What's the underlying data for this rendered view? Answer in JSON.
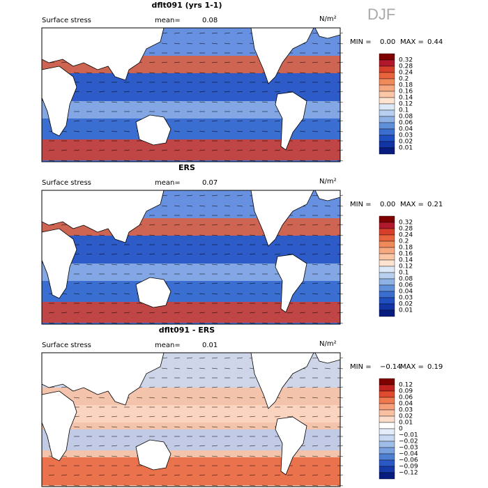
{
  "season": "DJF",
  "panels": [
    {
      "title": "dflt091 (yrs 1-1)",
      "subtitle": "Surface stress",
      "mean_label": "mean=",
      "mean": "0.08",
      "units": "N/m²",
      "min_label": "MIN =",
      "min": "0.00",
      "max_label": "MAX =",
      "max": "0.44",
      "colorbar": [
        "0.32",
        "0.28",
        "0.24",
        "0.2",
        "0.18",
        "0.16",
        "0.14",
        "0.12",
        "0.1",
        "0.08",
        "0.06",
        "0.04",
        "0.03",
        "0.02",
        "0.01"
      ]
    },
    {
      "title": "ERS",
      "subtitle": "Surface stress",
      "mean_label": "mean=",
      "mean": "0.07",
      "units": "N/m²",
      "min_label": "MIN =",
      "min": "0.00",
      "max_label": "MAX =",
      "max": "0.21",
      "colorbar": [
        "0.32",
        "0.28",
        "0.24",
        "0.2",
        "0.18",
        "0.16",
        "0.14",
        "0.12",
        "0.1",
        "0.08",
        "0.06",
        "0.04",
        "0.03",
        "0.02",
        "0.01"
      ]
    },
    {
      "title": "dflt091 - ERS",
      "subtitle": "Surface stress",
      "mean_label": "mean=",
      "mean": "0.01",
      "units": "N/m²",
      "min_label": "MIN =",
      "min": "−0.14",
      "max_label": "MAX =",
      "max": "0.19",
      "colorbar": [
        "0.12",
        "0.09",
        "0.06",
        "0.04",
        "0.03",
        "0.02",
        "0.01",
        "0",
        "−0.01",
        "−0.02",
        "−0.03",
        "−0.04",
        "−0.06",
        "−0.09",
        "−0.12"
      ]
    }
  ]
}
